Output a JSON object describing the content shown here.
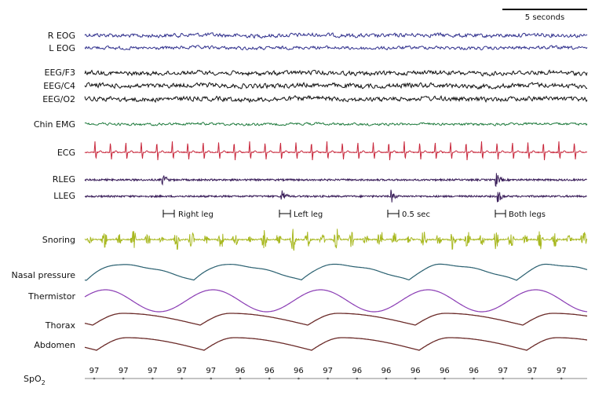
{
  "scale_bar": {
    "label": "5 seconds"
  },
  "channels": [
    {
      "label": "R EOG",
      "color": "#2e2e8c"
    },
    {
      "label": "L EOG",
      "color": "#2e2e8c"
    },
    {
      "label": "EEG/F3",
      "color": "#111111"
    },
    {
      "label": "EEG/C4",
      "color": "#111111"
    },
    {
      "label": "EEG/O2",
      "color": "#111111"
    },
    {
      "label": "Chin EMG",
      "color": "#1e7a3c"
    },
    {
      "label": "ECG",
      "color": "#c8283c"
    },
    {
      "label": "RLEG",
      "color": "#3a1e5a"
    },
    {
      "label": "LLEG",
      "color": "#3a1e5a"
    },
    {
      "label": "Snoring",
      "color": "#a8b820"
    },
    {
      "label": "Nasal pressure",
      "color": "#2a6070"
    },
    {
      "label": "Thermistor",
      "color": "#8a3cb4"
    },
    {
      "label": "Thorax",
      "color": "#6a2a28"
    },
    {
      "label": "Abdomen",
      "color": "#6a2a28"
    }
  ],
  "leg_annotations": [
    "Right leg",
    "Left leg",
    "0.5 sec",
    "Both legs"
  ],
  "spo2": {
    "label_main": "SpO",
    "label_sub": "2",
    "values": [
      "97",
      "97",
      "97",
      "97",
      "97",
      "96",
      "96",
      "96",
      "97",
      "96",
      "96",
      "96",
      "96",
      "96",
      "97",
      "97",
      "97"
    ]
  }
}
